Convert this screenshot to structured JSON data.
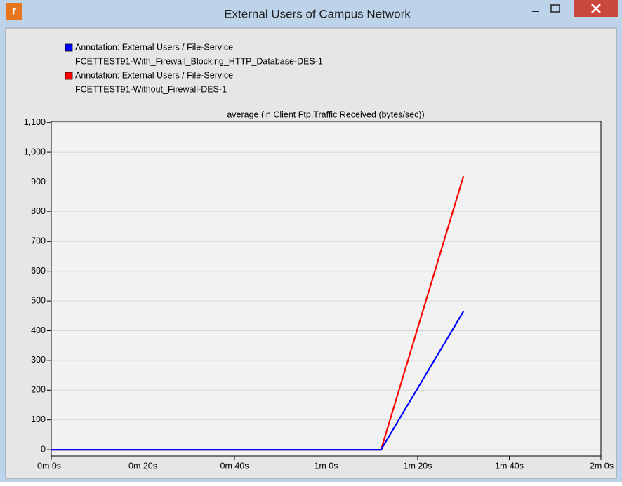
{
  "window": {
    "title": "External Users of Campus Network"
  },
  "chart_data": {
    "type": "line",
    "subtitle": "average (in Client Ftp.Traffic Received (bytes/sec))",
    "x": [
      0,
      72,
      90
    ],
    "series": [
      {
        "annotation": "Annotation: External Users / File-Service",
        "name": "FCETTEST91-With_Firewall_Blocking_HTTP_Database-DES-1",
        "color": "#0000ff",
        "values": [
          0,
          0,
          465
        ]
      },
      {
        "annotation": "Annotation: External Users / File-Service",
        "name": "FCETTEST91-Without_Firewall-DES-1",
        "color": "#ff0000",
        "values": [
          0,
          0,
          920
        ]
      }
    ],
    "xlim": [
      0,
      120
    ],
    "xticks": [
      {
        "value": 0,
        "label": "0m 0s"
      },
      {
        "value": 20,
        "label": "0m 20s"
      },
      {
        "value": 40,
        "label": "0m 40s"
      },
      {
        "value": 60,
        "label": "1m 0s"
      },
      {
        "value": 80,
        "label": "1m 20s"
      },
      {
        "value": 100,
        "label": "1m 40s"
      },
      {
        "value": 120,
        "label": "2m 0s"
      }
    ],
    "ylim": [
      -21,
      1104
    ],
    "yticks": [
      0,
      100,
      200,
      300,
      400,
      500,
      600,
      700,
      800,
      900,
      {
        "value": 1000,
        "label": "1,000"
      },
      {
        "value": 1100,
        "label": "1,100"
      }
    ],
    "grid": true
  }
}
